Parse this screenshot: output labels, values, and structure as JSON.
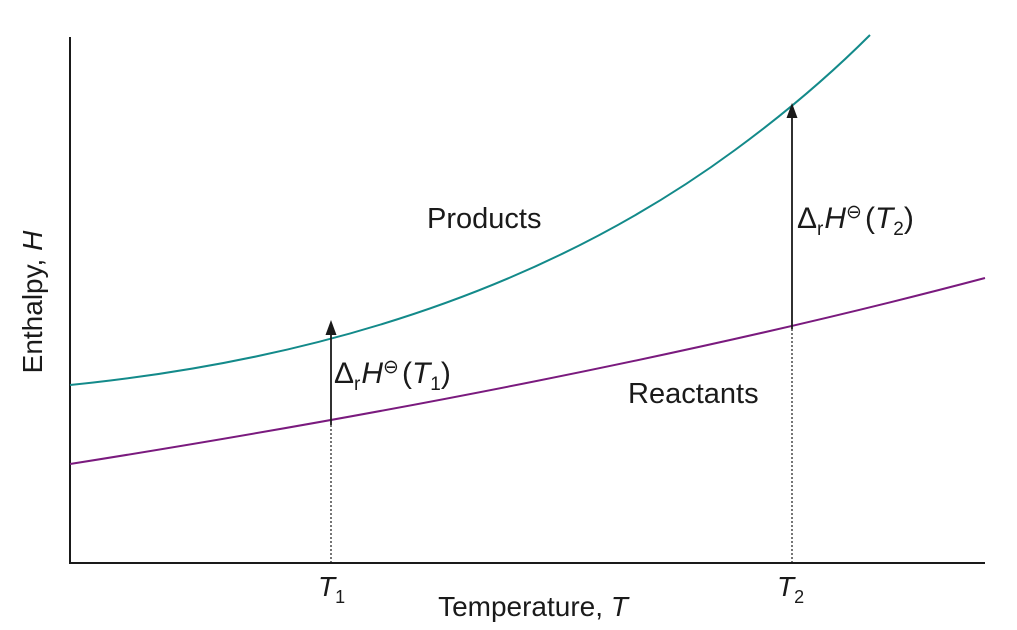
{
  "axes": {
    "y_label": "Enthalpy, ",
    "y_var": "H",
    "x_label": "Temperature, ",
    "x_var": "T"
  },
  "curves": {
    "products": {
      "label": "Products",
      "color": "#138a8a"
    },
    "reactants": {
      "label": "Reactants",
      "color": "#7a1a7e"
    }
  },
  "temperatures": {
    "t1": {
      "symbol": "T",
      "subscript": "1"
    },
    "t2": {
      "symbol": "T",
      "subscript": "2"
    }
  },
  "enthalpy_change": {
    "delta": "Δ",
    "sub_r": "r",
    "H": "H",
    "standard_symbol": "⊖",
    "open_paren": "(",
    "T": "T",
    "close_paren": ")",
    "sub_1": "1",
    "sub_2": "2"
  },
  "colors": {
    "axis": "#1a1a1a",
    "arrow": "#1a1a1a",
    "dotted": "#1a1a1a"
  }
}
